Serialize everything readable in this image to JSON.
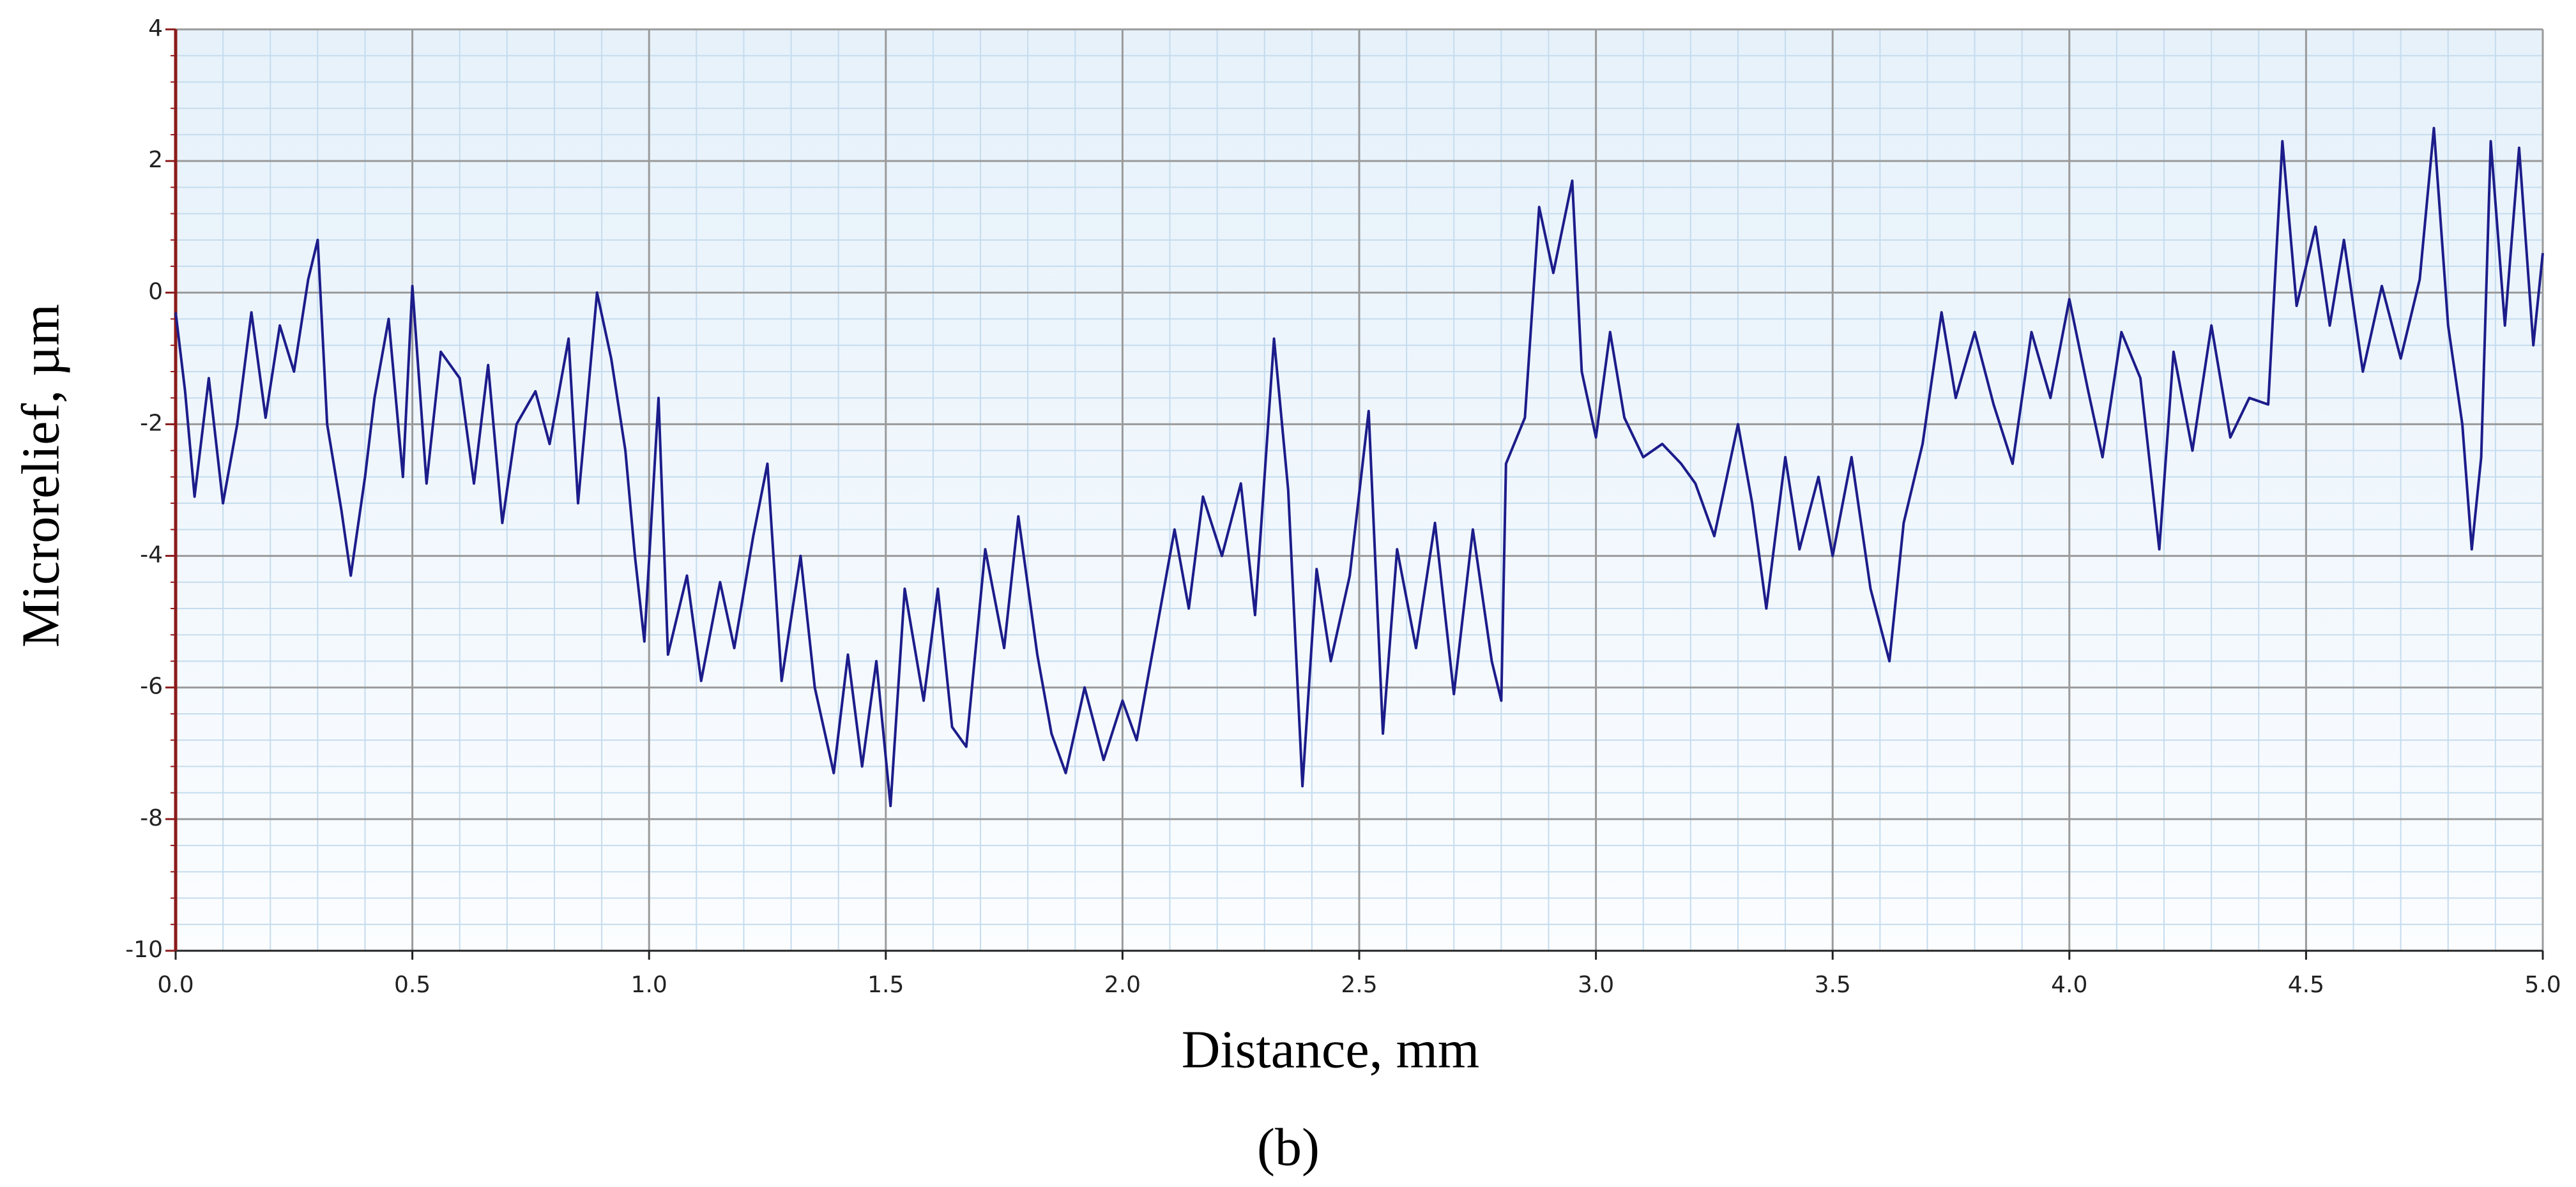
{
  "chart_data": {
    "type": "line",
    "xlabel": "Distance, mm",
    "ylabel": "Microrelief, µm",
    "caption": "(b)",
    "color": "#1c1c8a",
    "grid": true,
    "minor_divisions": 5,
    "xlim": [
      0,
      5
    ],
    "ylim": [
      -10,
      4
    ],
    "xticks": [
      {
        "value": 0,
        "label": "0.0"
      },
      0.5,
      {
        "value": 1,
        "label": "1.0"
      },
      1.5,
      {
        "value": 2,
        "label": "2.0"
      },
      2.5,
      {
        "value": 3,
        "label": "3.0"
      },
      3.5,
      {
        "value": 4,
        "label": "4.0"
      },
      4.5,
      {
        "value": 5,
        "label": "5.0"
      }
    ],
    "yticks": [
      -10,
      -8,
      -6,
      -4,
      -2,
      0,
      2,
      4
    ],
    "x": [
      0,
      0.02,
      0.04,
      0.07,
      0.1,
      0.13,
      0.16,
      0.19,
      0.22,
      0.25,
      0.28,
      0.3,
      0.32,
      0.35,
      0.37,
      0.4,
      0.42,
      0.45,
      0.48,
      0.5,
      0.53,
      0.56,
      0.6,
      0.63,
      0.66,
      0.69,
      0.72,
      0.76,
      0.79,
      0.83,
      0.85,
      0.89,
      0.92,
      0.95,
      0.97,
      0.99,
      1.02,
      1.04,
      1.08,
      1.11,
      1.15,
      1.18,
      1.22,
      1.25,
      1.28,
      1.32,
      1.35,
      1.39,
      1.42,
      1.45,
      1.48,
      1.51,
      1.54,
      1.58,
      1.61,
      1.64,
      1.67,
      1.71,
      1.75,
      1.78,
      1.82,
      1.85,
      1.88,
      1.92,
      1.96,
      2.0,
      2.03,
      2.07,
      2.11,
      2.14,
      2.17,
      2.21,
      2.25,
      2.28,
      2.32,
      2.35,
      2.38,
      2.41,
      2.44,
      2.48,
      2.52,
      2.55,
      2.58,
      2.62,
      2.66,
      2.7,
      2.74,
      2.78,
      2.8,
      2.81,
      2.85,
      2.88,
      2.91,
      2.95,
      2.97,
      3.0,
      3.03,
      3.06,
      3.1,
      3.14,
      3.18,
      3.21,
      3.25,
      3.3,
      3.33,
      3.36,
      3.4,
      3.43,
      3.47,
      3.5,
      3.54,
      3.58,
      3.62,
      3.65,
      3.69,
      3.73,
      3.76,
      3.8,
      3.84,
      3.88,
      3.92,
      3.96,
      4.0,
      4.04,
      4.07,
      4.11,
      4.15,
      4.19,
      4.22,
      4.26,
      4.3,
      4.34,
      4.38,
      4.42,
      4.45,
      4.48,
      4.52,
      4.55,
      4.58,
      4.62,
      4.66,
      4.7,
      4.74,
      4.77,
      4.8,
      4.83,
      4.85,
      4.87,
      4.89,
      4.92,
      4.95,
      4.98,
      5.0
    ],
    "values": [
      -0.3,
      -1.5,
      -3.1,
      -1.3,
      -3.2,
      -2.0,
      -0.3,
      -1.9,
      -0.5,
      -1.2,
      0.2,
      0.8,
      -2.0,
      -3.3,
      -4.3,
      -2.8,
      -1.6,
      -0.4,
      -2.8,
      0.1,
      -2.9,
      -0.9,
      -1.3,
      -2.9,
      -1.1,
      -3.5,
      -2.0,
      -1.5,
      -2.3,
      -0.7,
      -3.2,
      0.0,
      -1.0,
      -2.4,
      -4.0,
      -5.3,
      -1.6,
      -5.5,
      -4.3,
      -5.9,
      -4.4,
      -5.4,
      -3.7,
      -2.6,
      -5.9,
      -4.0,
      -6.0,
      -7.3,
      -5.5,
      -7.2,
      -5.6,
      -7.8,
      -4.5,
      -6.2,
      -4.5,
      -6.6,
      -6.9,
      -3.9,
      -5.4,
      -3.4,
      -5.5,
      -6.7,
      -7.3,
      -6.0,
      -7.1,
      -6.2,
      -6.8,
      -5.2,
      -3.6,
      -4.8,
      -3.1,
      -4.0,
      -2.9,
      -4.9,
      -0.7,
      -3.0,
      -7.5,
      -4.2,
      -5.6,
      -4.3,
      -1.8,
      -6.7,
      -3.9,
      -5.4,
      -3.5,
      -6.1,
      -3.6,
      -5.6,
      -6.2,
      -2.6,
      -1.9,
      1.3,
      0.3,
      1.7,
      -1.2,
      -2.2,
      -0.6,
      -1.9,
      -2.5,
      -2.3,
      -2.6,
      -2.9,
      -3.7,
      -2.0,
      -3.2,
      -4.8,
      -2.5,
      -3.9,
      -2.8,
      -4.0,
      -2.5,
      -4.5,
      -5.6,
      -3.5,
      -2.3,
      -0.3,
      -1.6,
      -0.6,
      -1.7,
      -2.6,
      -0.6,
      -1.6,
      -0.1,
      -1.5,
      -2.5,
      -0.6,
      -1.3,
      -3.9,
      -0.9,
      -2.4,
      -0.5,
      -2.2,
      -1.6,
      -1.7,
      2.3,
      -0.2,
      1.0,
      -0.5,
      0.8,
      -1.2,
      0.1,
      -1.0,
      0.2,
      2.5,
      -0.5,
      -2.0,
      -3.9,
      -2.5,
      2.3,
      -0.5,
      2.2,
      -0.8,
      0.6
    ]
  }
}
